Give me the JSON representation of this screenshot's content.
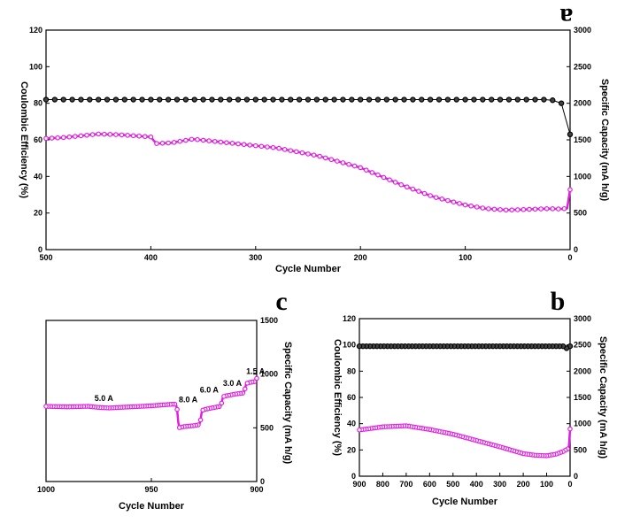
{
  "colors": {
    "capacity": "#e020e0",
    "efficiency": "#000000"
  },
  "chart_data": [
    {
      "panel": "a",
      "type": "line",
      "xlabel": "Cycle Number",
      "ylabel_left": "Coulombic Efficiency (%)",
      "ylabel_right": "Specific Capacity (mA h/g)",
      "xlim": [
        500,
        0
      ],
      "xticks": [
        500,
        400,
        300,
        200,
        100,
        0
      ],
      "ylim_left": [
        0,
        120
      ],
      "yticks_left": [
        0,
        20,
        40,
        60,
        80,
        100,
        120
      ],
      "ylim_right": [
        0,
        3000
      ],
      "yticks_right": [
        0,
        500,
        1000,
        1500,
        2000,
        2500,
        3000
      ],
      "series": [
        {
          "axis": "right",
          "color": "#e020e0",
          "x": [
            0,
            1,
            2,
            3,
            5,
            10,
            20,
            40,
            60,
            80,
            100,
            130,
            160,
            200,
            240,
            280,
            320,
            360,
            380,
            395,
            400,
            430,
            450,
            470,
            485,
            500
          ],
          "y": [
            820,
            640,
            580,
            560,
            560,
            555,
            560,
            550,
            540,
            560,
            610,
            720,
            880,
            1120,
            1280,
            1390,
            1450,
            1510,
            1460,
            1450,
            1540,
            1570,
            1580,
            1550,
            1530,
            1520
          ]
        },
        {
          "axis": "left",
          "color": "#000000",
          "x": [
            0,
            2,
            5,
            10,
            20,
            40,
            80,
            150,
            200,
            300,
            400,
            500
          ],
          "y": [
            63,
            70,
            78,
            81,
            82,
            82,
            82,
            82,
            82,
            82,
            82,
            82
          ]
        }
      ]
    },
    {
      "panel": "b",
      "type": "line",
      "xlabel": "Cycle Number",
      "ylabel_left": "Coulombic Efficiency (%)",
      "ylabel_right": "Specific Capacity (mA h/g)",
      "xlim": [
        900,
        0
      ],
      "xticks": [
        900,
        800,
        700,
        600,
        500,
        400,
        300,
        200,
        100,
        0
      ],
      "ylim_left": [
        0,
        120
      ],
      "yticks_left": [
        0,
        20,
        40,
        60,
        80,
        100,
        120
      ],
      "ylim_right": [
        0,
        3000
      ],
      "yticks_right": [
        0,
        500,
        1000,
        1500,
        2000,
        2500,
        3000
      ],
      "series": [
        {
          "axis": "right",
          "color": "#e020e0",
          "x": [
            0,
            2,
            5,
            10,
            30,
            60,
            100,
            150,
            200,
            300,
            400,
            500,
            600,
            700,
            800,
            900
          ],
          "y": [
            900,
            700,
            570,
            520,
            470,
            420,
            390,
            400,
            430,
            560,
            680,
            800,
            890,
            960,
            940,
            880
          ]
        },
        {
          "axis": "left",
          "color": "#000000",
          "x": [
            0,
            2,
            5,
            10,
            20,
            100,
            300,
            500,
            700,
            900
          ],
          "y": [
            99,
            65,
            75,
            96,
            99,
            99,
            99,
            99,
            99,
            99
          ]
        }
      ]
    },
    {
      "panel": "c",
      "type": "line",
      "xlabel": "Cycle Number",
      "ylabel_right": "Specific Capacity (mA h/g)",
      "xlim": [
        1000,
        900
      ],
      "xticks": [
        1000,
        950,
        900
      ],
      "ylim_right": [
        0,
        1500
      ],
      "yticks_right": [
        0,
        500,
        1000,
        1500
      ],
      "series": [
        {
          "axis": "right",
          "color": "#e020e0",
          "x": [
            1000,
            990,
            980,
            975,
            970,
            960,
            950,
            940,
            938,
            937,
            935,
            930,
            927,
            926,
            925,
            920,
            917,
            916,
            914,
            910,
            906,
            905,
            904,
            901,
            900
          ],
          "y": [
            700,
            695,
            700,
            690,
            685,
            695,
            705,
            720,
            720,
            500,
            510,
            520,
            530,
            660,
            670,
            690,
            700,
            790,
            800,
            815,
            825,
            910,
            920,
            930,
            960
          ]
        }
      ],
      "annotations": [
        "5.0 A",
        "8.0 A",
        "6.0 A",
        "3.0 A",
        "1.5 A"
      ]
    }
  ],
  "panel_labels": {
    "a": "a",
    "b": "b",
    "c": "c"
  }
}
